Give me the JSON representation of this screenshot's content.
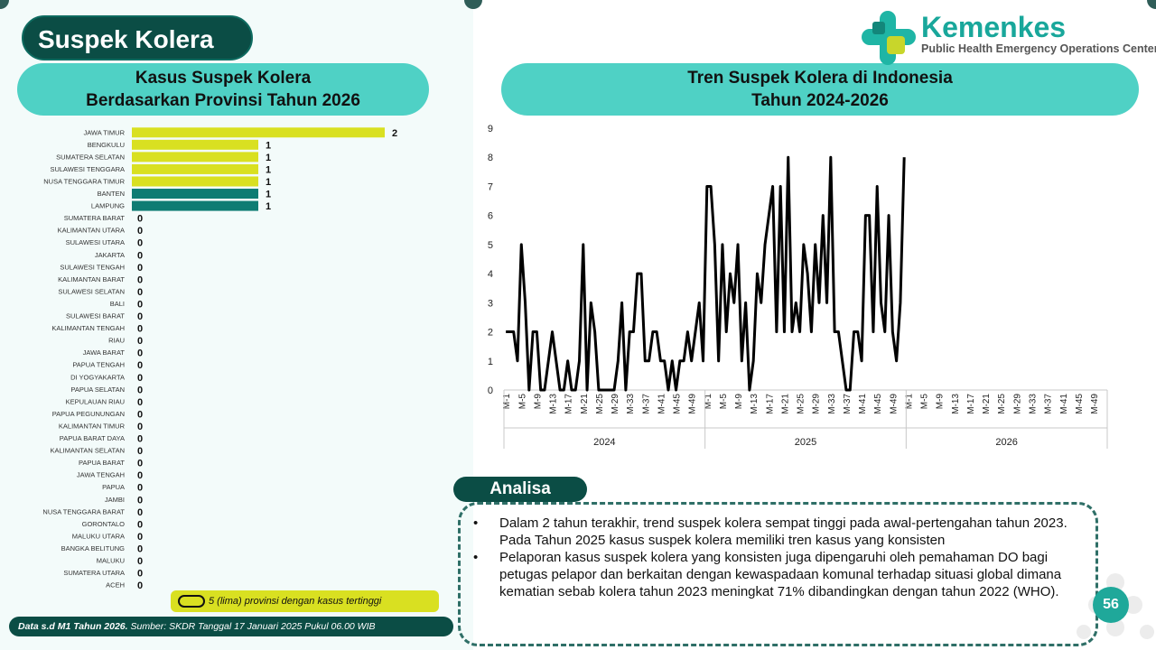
{
  "title": "Suspek Kolera",
  "logo": {
    "name": "Kemenkes",
    "subtitle": "Public Health Emergency Operations Center"
  },
  "left_header": {
    "line1": "Kasus Suspek Kolera",
    "line2": "Berdasarkan Provinsi Tahun 2026"
  },
  "right_header": {
    "line1": "Tren Suspek Kolera di Indonesia",
    "line2": "Tahun 2024-2026"
  },
  "legend_text": "5 (lima) provinsi dengan kasus tertinggi",
  "footer": {
    "bold": "Data s.d M1 Tahun 2026.",
    "text": " Sumber: SKDR Tanggal 17 Januari 2025 Pukul 06.00 WIB"
  },
  "analisa": {
    "label": "Analisa",
    "bullet_symbol": "•",
    "bullets": [
      "Dalam 2 tahun terakhir, trend suspek kolera sempat tinggi pada awal-pertengahan tahun 2023. Pada Tahun 2025 kasus suspek kolera memiliki tren kasus yang konsisten",
      "Pelaporan kasus suspek kolera yang konsisten juga dipengaruhi oleh pemahaman DO bagi petugas pelapor dan berkaitan dengan kewaspadaan komunal terhadap situasi global dimana kematian sebab kolera tahun 2023 meningkat 71% dibandingkan dengan tahun 2022 (WHO)."
    ]
  },
  "page_number": "56",
  "colors": {
    "highlight": "#d9e021",
    "teal": "#0e7c73",
    "header": "#4fd1c5",
    "dark": "#0b4d45"
  },
  "chart_data": [
    {
      "type": "bar",
      "orientation": "horizontal",
      "categories": [
        "JAWA TIMUR",
        "BENGKULU",
        "SUMATERA SELATAN",
        "SULAWESI TENGGARA",
        "NUSA TENGGARA TIMUR",
        "BANTEN",
        "LAMPUNG",
        "SUMATERA BARAT",
        "KALIMANTAN UTARA",
        "SULAWESI UTARA",
        "JAKARTA",
        "SULAWESI TENGAH",
        "KALIMANTAN BARAT",
        "SULAWESI SELATAN",
        "BALI",
        "SULAWESI BARAT",
        "KALIMANTAN TENGAH",
        "RIAU",
        "JAWA BARAT",
        "PAPUA TENGAH",
        "DI YOGYAKARTA",
        "PAPUA SELATAN",
        "KEPULAUAN RIAU",
        "PAPUA PEGUNUNGAN",
        "KALIMANTAN TIMUR",
        "PAPUA BARAT DAYA",
        "KALIMANTAN SELATAN",
        "PAPUA BARAT",
        "JAWA TENGAH",
        "PAPUA",
        "JAMBI",
        "NUSA TENGGARA BARAT",
        "GORONTALO",
        "MALUKU UTARA",
        "BANGKA BELITUNG",
        "MALUKU",
        "SUMATERA UTARA",
        "ACEH"
      ],
      "values": [
        2,
        1,
        1,
        1,
        1,
        1,
        1,
        0,
        0,
        0,
        0,
        0,
        0,
        0,
        0,
        0,
        0,
        0,
        0,
        0,
        0,
        0,
        0,
        0,
        0,
        0,
        0,
        0,
        0,
        0,
        0,
        0,
        0,
        0,
        0,
        0,
        0,
        0
      ],
      "highlight_top": 5,
      "xlim": [
        0,
        2
      ]
    },
    {
      "type": "line",
      "ylim": [
        0,
        9
      ],
      "yticks": [
        0,
        1,
        2,
        3,
        4,
        5,
        6,
        7,
        8,
        9
      ],
      "years": [
        "2024",
        "2025",
        "2026"
      ],
      "weeks_per_year": 52,
      "tick_labels": [
        "M-1",
        "M-5",
        "M-9",
        "M-13",
        "M-17",
        "M-21",
        "M-25",
        "M-29",
        "M-33",
        "M-37",
        "M-41",
        "M-45",
        "M-49"
      ],
      "series": [
        {
          "values": [
            2,
            2,
            2,
            1,
            5,
            3,
            0,
            2,
            2,
            0,
            0,
            1,
            2,
            1,
            0,
            0,
            1,
            0,
            0,
            1,
            5,
            0,
            3,
            2,
            0,
            0,
            0,
            0,
            0,
            1,
            3,
            0,
            2,
            2,
            4,
            4,
            1,
            1,
            2,
            2,
            1,
            1,
            0,
            1,
            0,
            1,
            1,
            2,
            1,
            2,
            3,
            1,
            7,
            7,
            5,
            1,
            5,
            2,
            4,
            3,
            5,
            1,
            3,
            0,
            1,
            4,
            3,
            5,
            6,
            7,
            2,
            7,
            2,
            8,
            2,
            3,
            2,
            5,
            4,
            2,
            5,
            3,
            6,
            3,
            8,
            2,
            2,
            1,
            0,
            0,
            2,
            2,
            1,
            6,
            6,
            2,
            7,
            3,
            2,
            6,
            2,
            1,
            3,
            8
          ]
        }
      ]
    }
  ]
}
